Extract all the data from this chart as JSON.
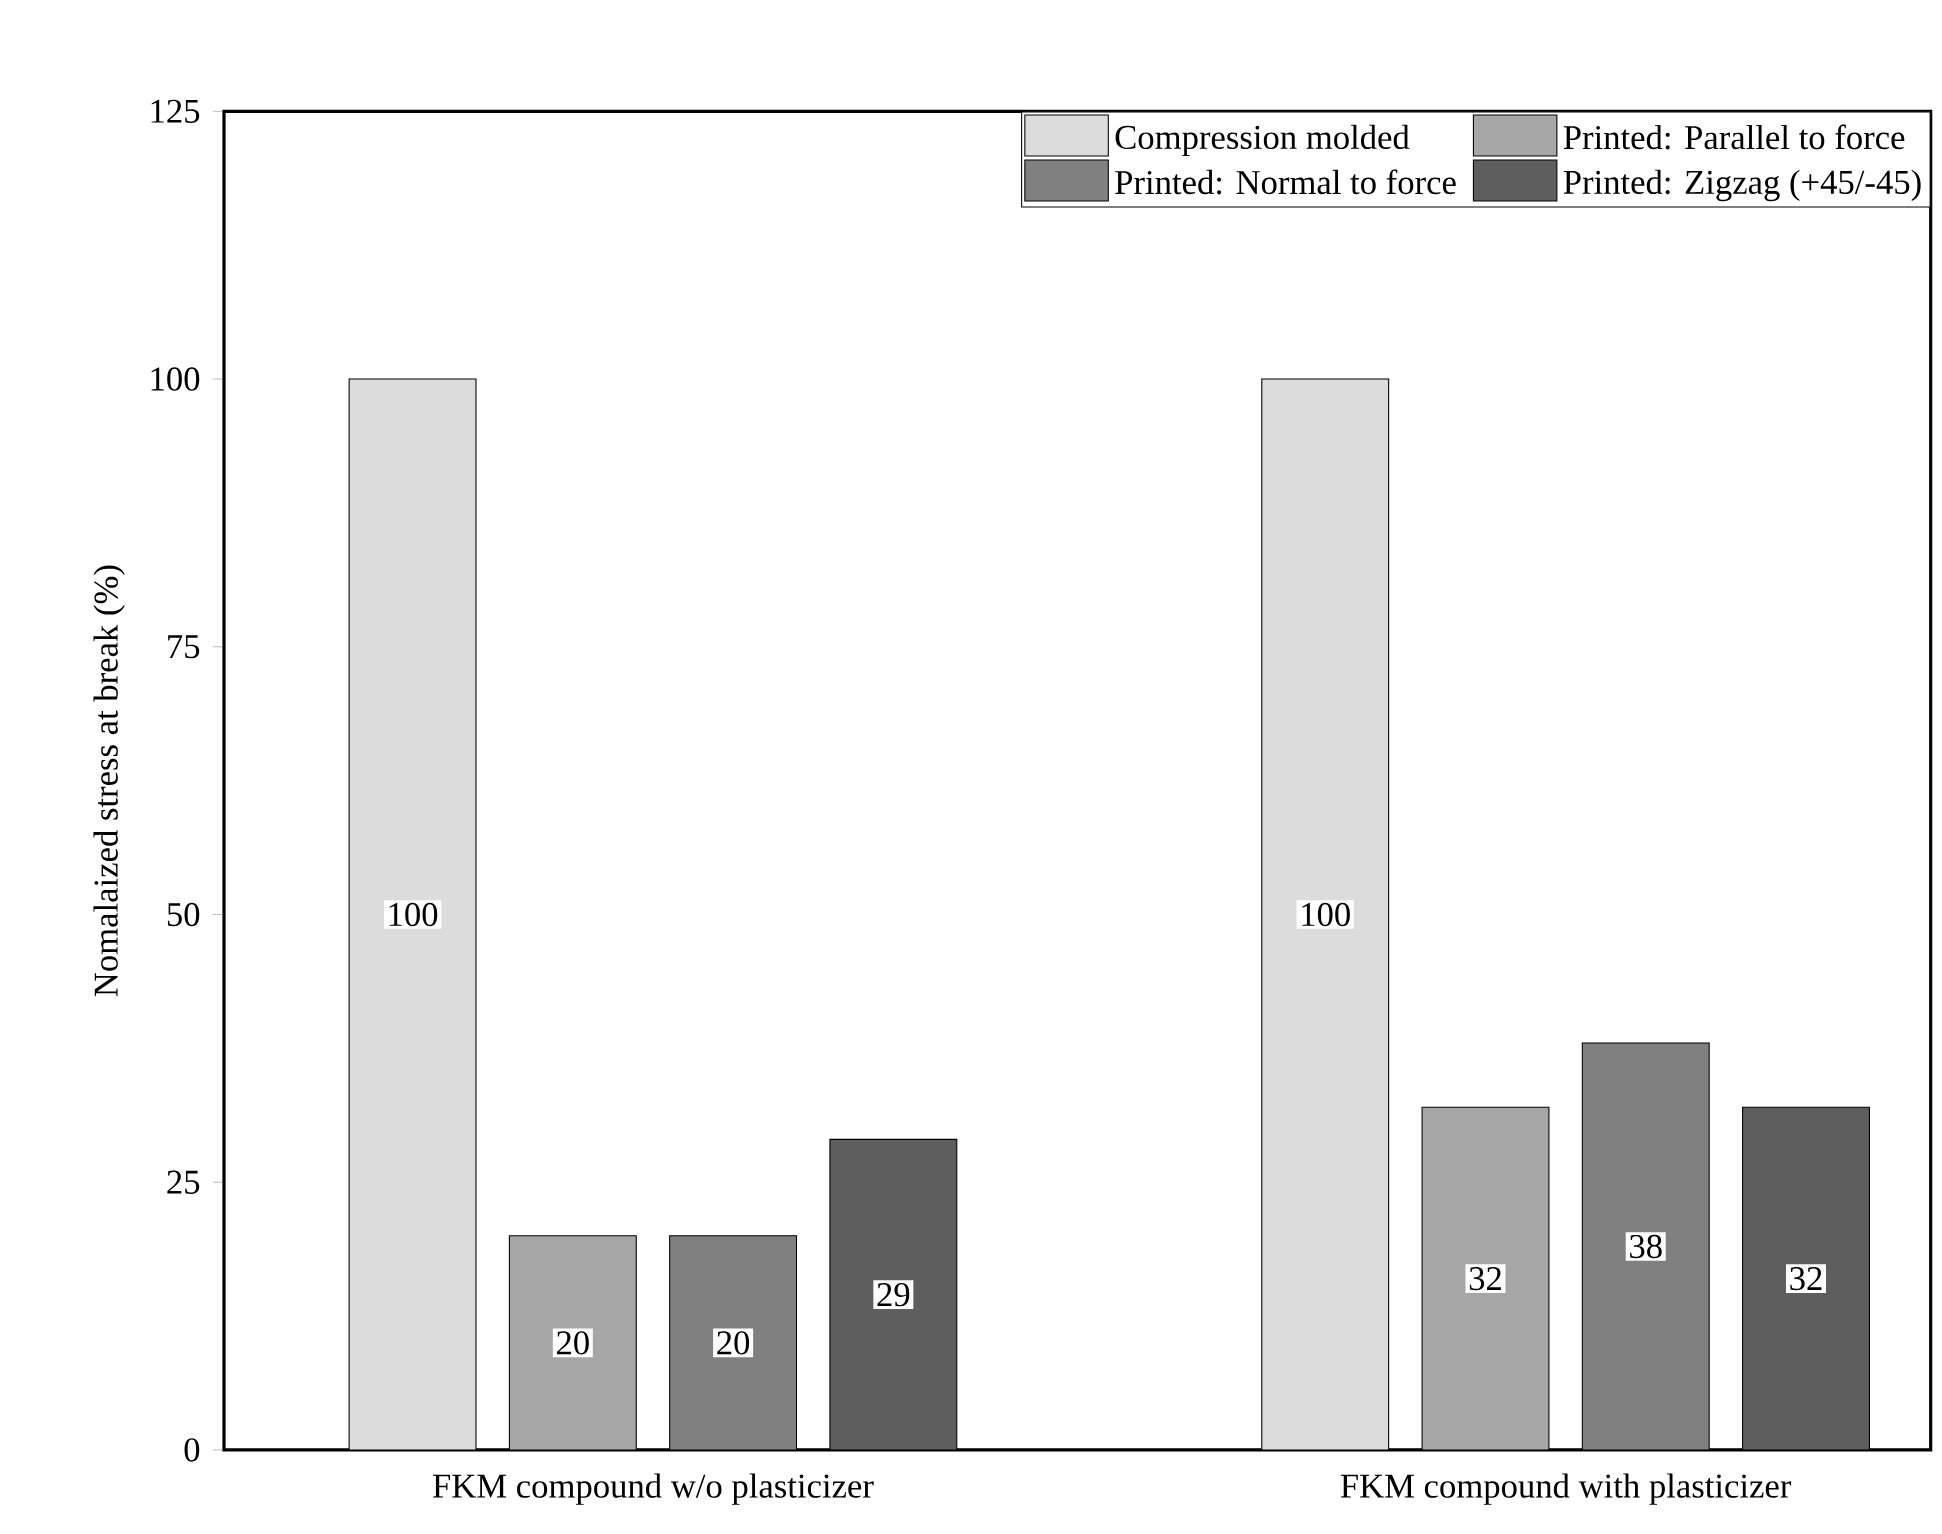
{
  "chart_data": {
    "type": "bar",
    "ylabel": "Nomalaized stress at break (%)",
    "categories": [
      "FKM compound w/o plasticizer",
      "FKM compound with plasticizer"
    ],
    "series": [
      {
        "name": "Compression molded",
        "color": "#dcdcdc",
        "values": [
          100,
          100
        ]
      },
      {
        "name": "Printed: Parallel to force",
        "color": "#a6a6a6",
        "values": [
          20,
          32
        ]
      },
      {
        "name": "Printed: Normal to force",
        "color": "#808080",
        "values": [
          20,
          38
        ]
      },
      {
        "name": "Printed: Zigzag (+45/-45)",
        "color": "#5e5e5e",
        "values": [
          29,
          32
        ]
      }
    ],
    "ylim": [
      0,
      125
    ],
    "yticks": [
      0,
      25,
      50,
      75,
      100,
      125
    ],
    "data_labels": true,
    "legend": "top right"
  }
}
